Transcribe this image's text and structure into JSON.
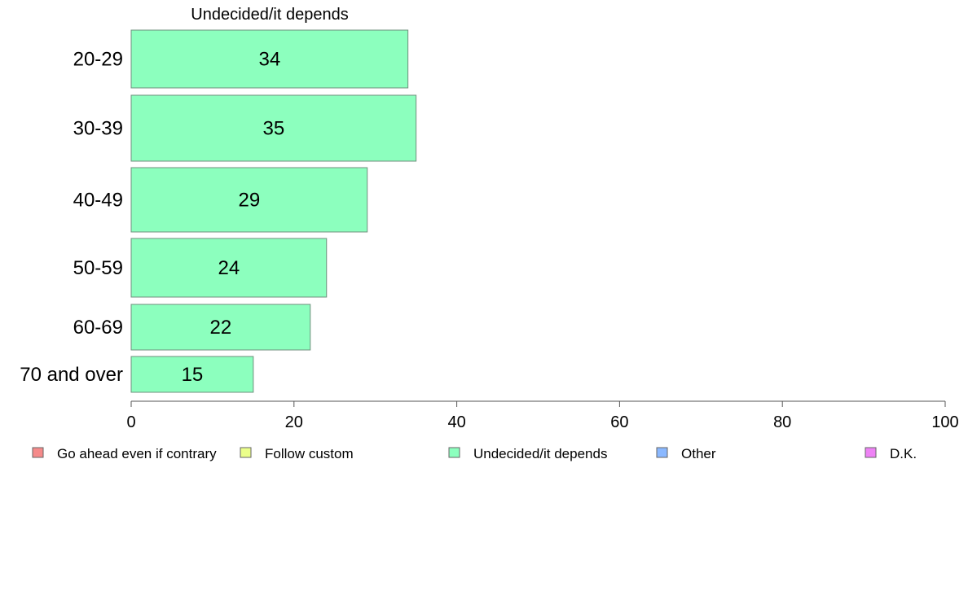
{
  "chart_data": {
    "type": "bar",
    "orientation": "horizontal",
    "title": "Undecided/it depends",
    "categories": [
      "20-29",
      "30-39",
      "40-49",
      "50-59",
      "60-69",
      "70 and over"
    ],
    "series": [
      {
        "name": "Undecided/it depends",
        "values": [
          34,
          35,
          29,
          24,
          22,
          15
        ],
        "color": "#8cffbe"
      }
    ],
    "data_labels": [
      "34",
      "35",
      "29",
      "24",
      "22",
      "15"
    ],
    "xlim": [
      0,
      100
    ],
    "x_ticks": [
      0,
      20,
      40,
      60,
      80,
      100
    ],
    "x_tick_labels": [
      "0",
      "20",
      "40",
      "60",
      "80",
      "100"
    ],
    "grid": false,
    "legend_position": "bottom",
    "legend": [
      {
        "label": "Go ahead even if contrary",
        "color": "#f58a8a"
      },
      {
        "label": "Follow custom",
        "color": "#ebff8a"
      },
      {
        "label": "Undecided/it depends",
        "color": "#8cffbe"
      },
      {
        "label": "Other",
        "color": "#8ab8ff"
      },
      {
        "label": "D.K.",
        "color": "#ee82f5"
      }
    ]
  }
}
